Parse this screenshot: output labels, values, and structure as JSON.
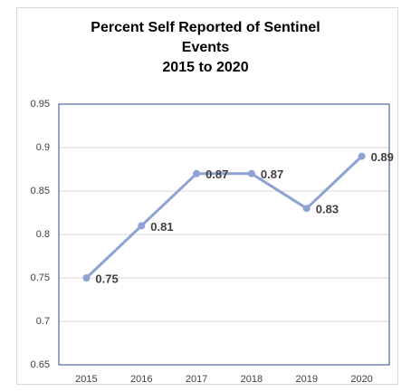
{
  "chart_data": {
    "type": "line",
    "title": "Percent Self Reported of Sentinel Events",
    "subtitle": "2015 to 2020",
    "categories": [
      "2015",
      "2016",
      "2017",
      "2018",
      "2019",
      "2020"
    ],
    "series": [
      {
        "name": "Percent Self Reported",
        "color": "#8ea2d4",
        "values": [
          0.75,
          0.81,
          0.87,
          0.87,
          0.83,
          0.89
        ]
      }
    ],
    "ylim": [
      0.65,
      0.95
    ],
    "yticks": [
      0.65,
      0.7,
      0.75,
      0.8,
      0.85,
      0.9,
      0.95
    ],
    "grid": true
  }
}
